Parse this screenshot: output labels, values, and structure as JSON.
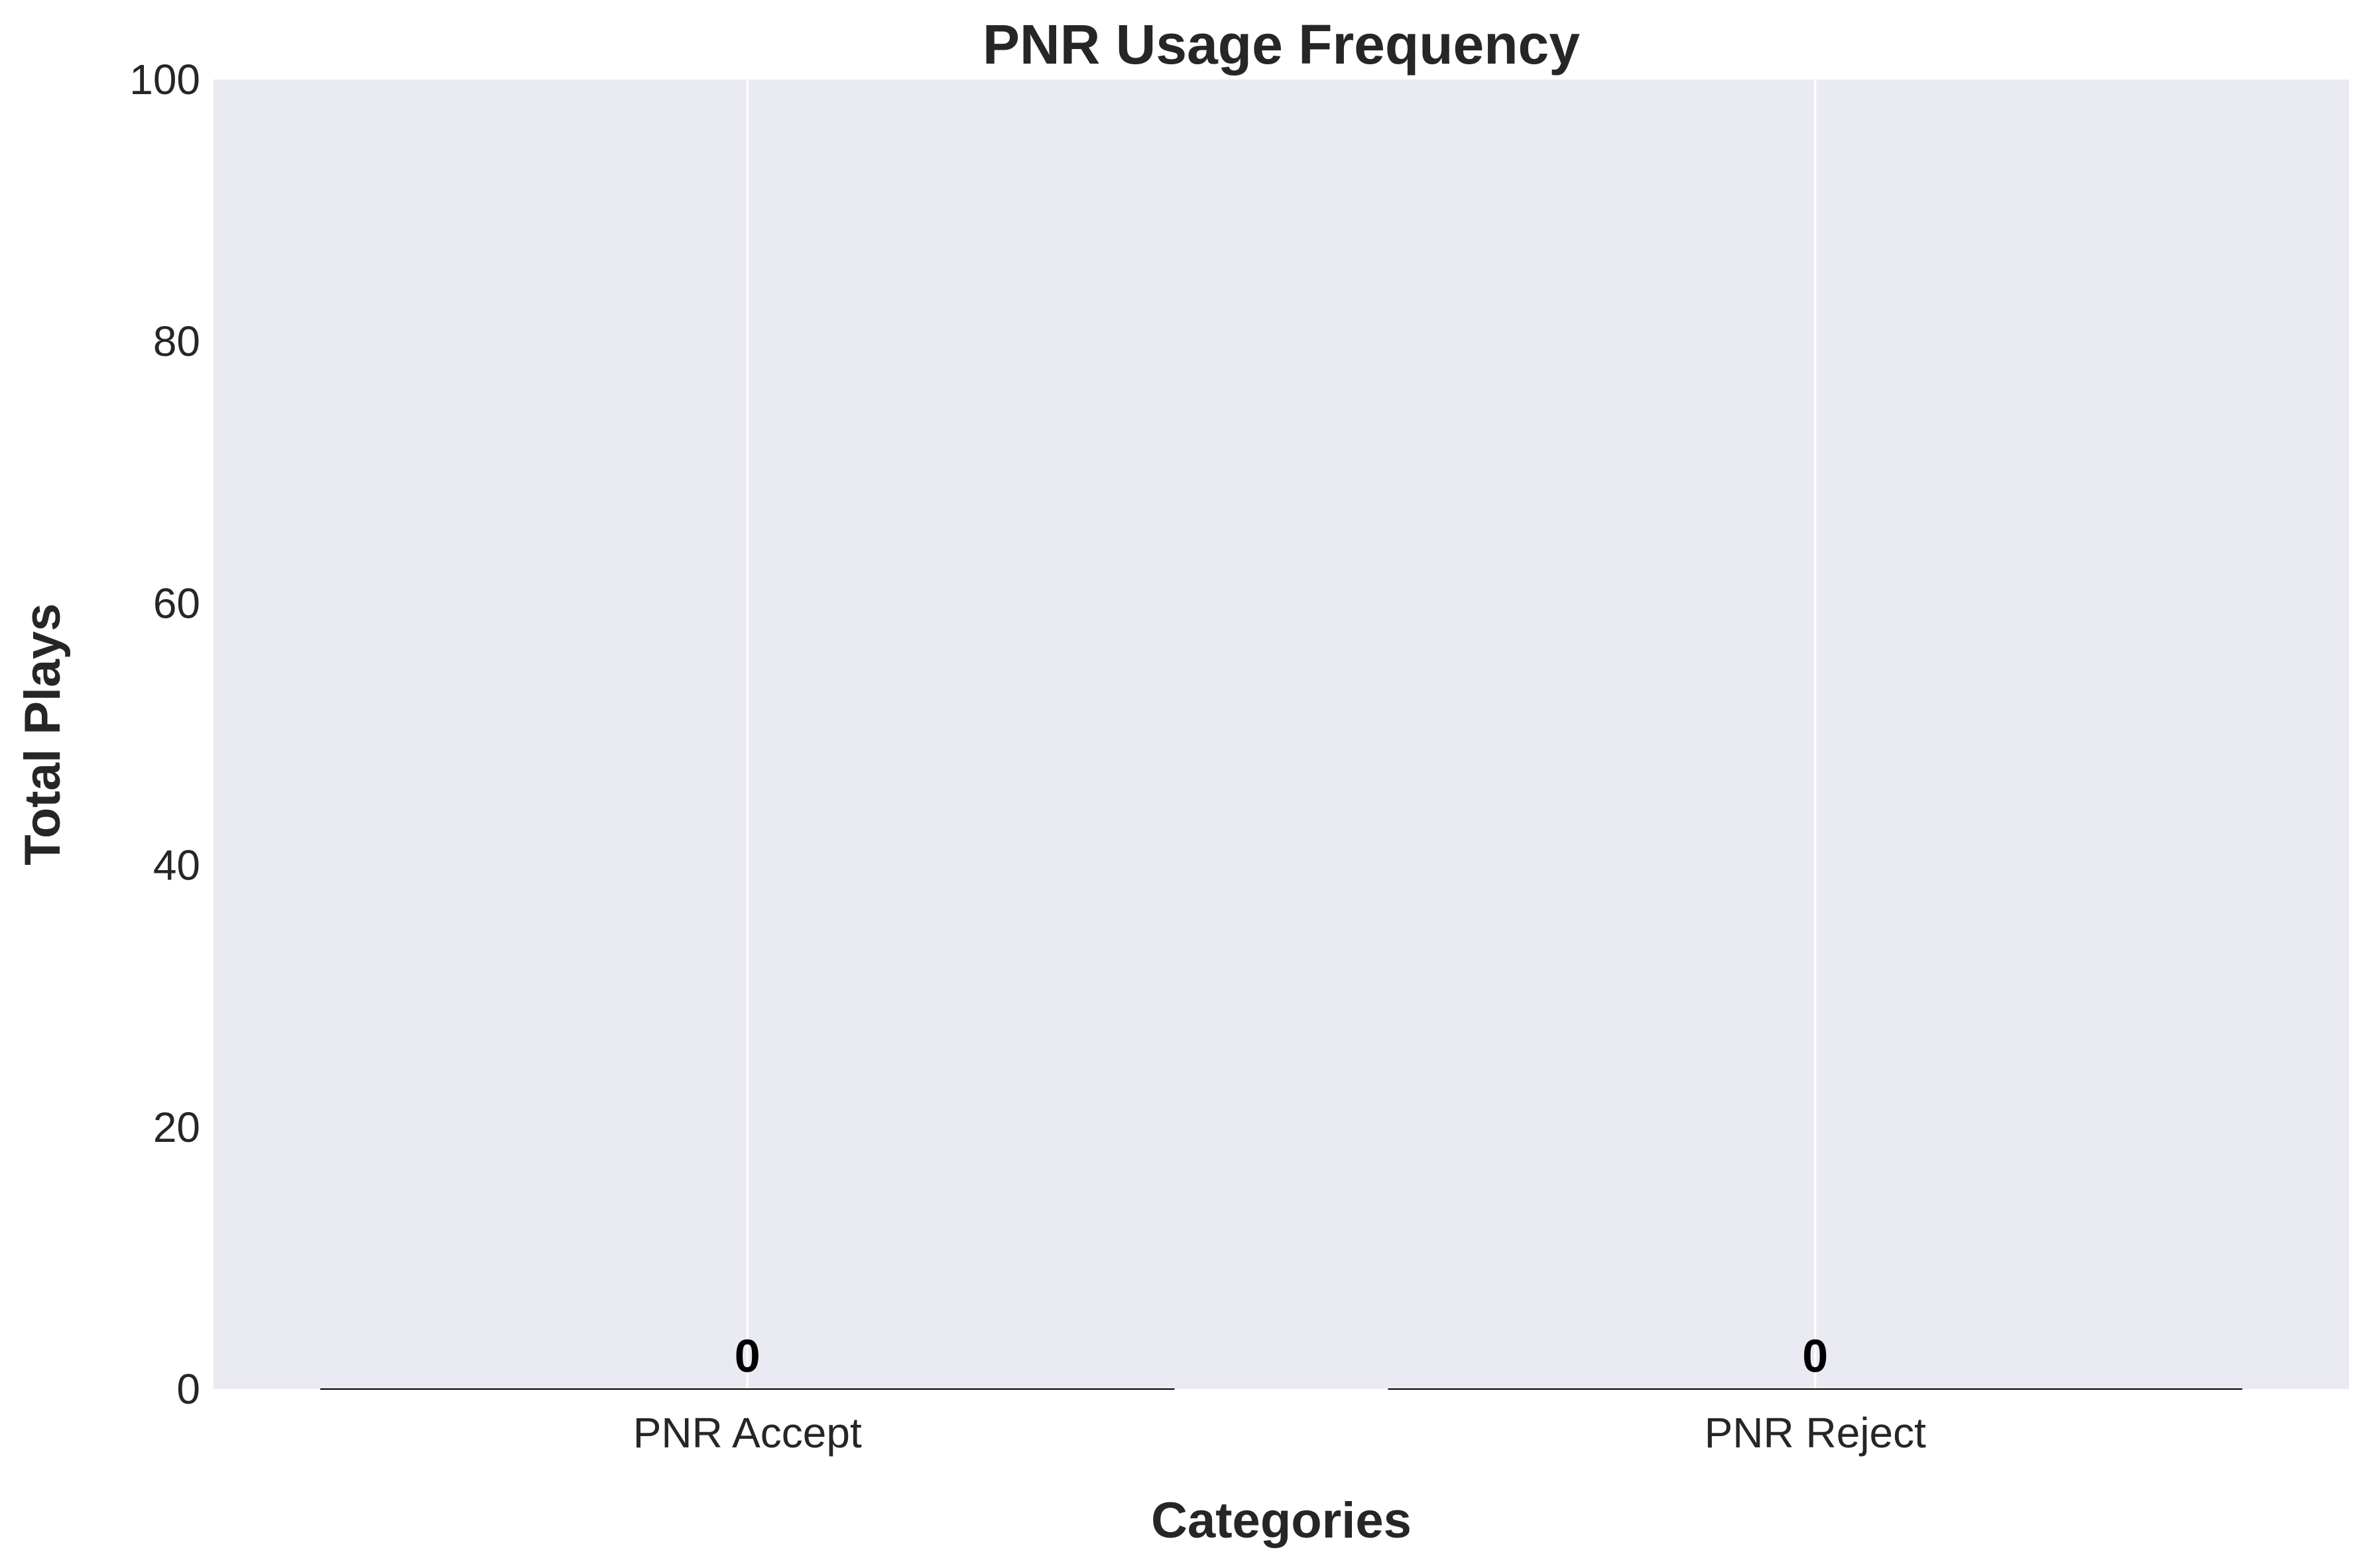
{
  "chart_data": {
    "type": "bar",
    "title": "PNR Usage Frequency",
    "xlabel": "Categories",
    "ylabel": "Total Plays",
    "categories": [
      "PNR Accept",
      "PNR Reject"
    ],
    "values": [
      0,
      0
    ],
    "data_labels": [
      "0",
      "0"
    ],
    "ylim": [
      0,
      100
    ],
    "yticks": [
      0,
      20,
      40,
      60,
      80,
      100
    ],
    "ytick_labels": [
      "0",
      "20",
      "40",
      "60",
      "80",
      "100"
    ],
    "grid": true,
    "legend": "none",
    "colors": {
      "plot_background": "#eaeaf2",
      "gridline": "#ffffff",
      "bar_edge": "#000000",
      "text": "#262626"
    }
  }
}
